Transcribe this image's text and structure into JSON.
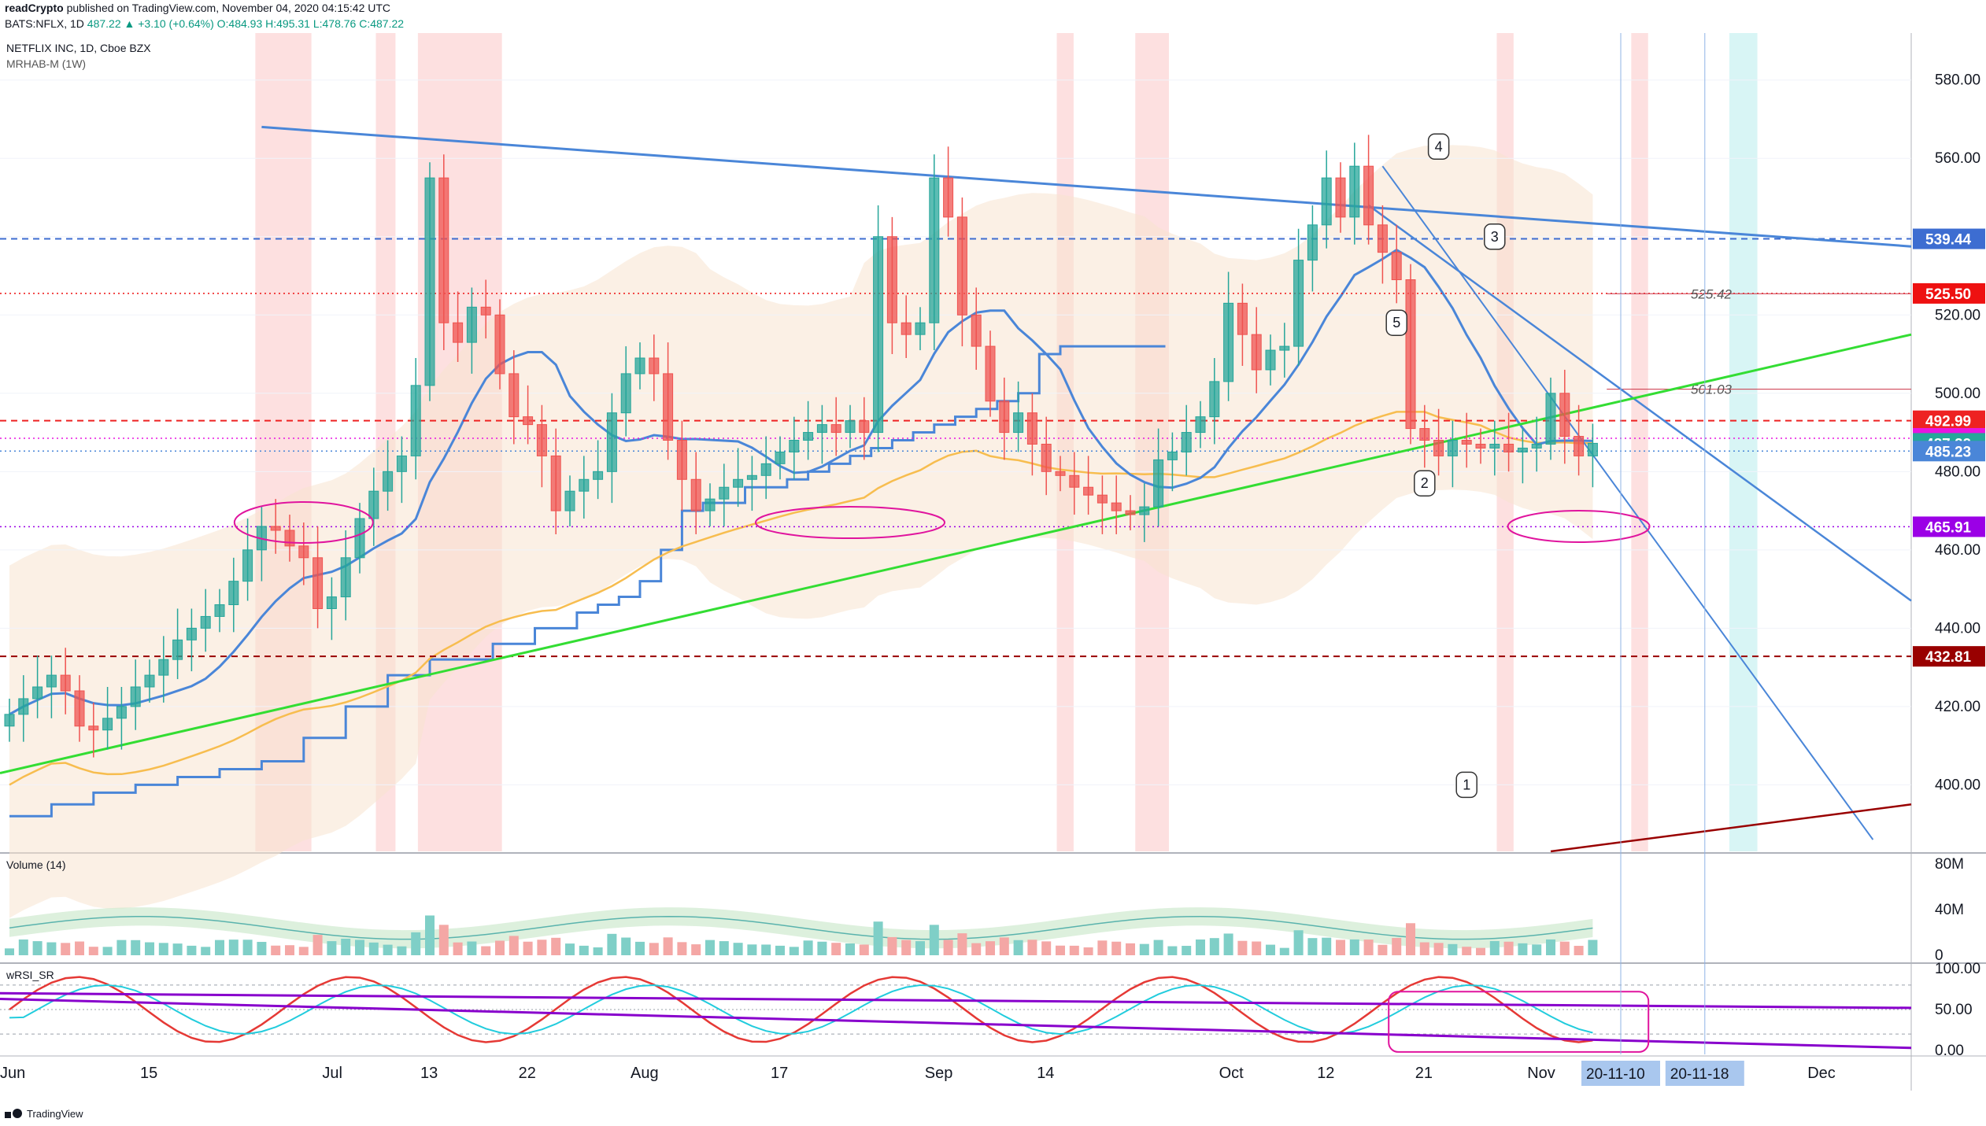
{
  "header": {
    "author": "readCrypto",
    "published_text": "published on TradingView.com, November 04, 2020 04:15:42 UTC",
    "symbol": "BATS:NFLX, 1D",
    "ohlc": "487.22 ▲ +3.10 (+0.64%) O:484.93 H:495.31 L:478.76 C:487.22"
  },
  "legend": {
    "title": "NETFLIX INC, 1D, Cboe BZX",
    "indicator": "MRHAB-M (1W)",
    "volume_label": "Volume (14)",
    "rsi_label": "wRSI_SR"
  },
  "footer": {
    "brand": "TradingView"
  },
  "colors": {
    "up": "#26a69a",
    "down": "#ef5350",
    "trend_blue": "#4a86d8",
    "trend_green": "#33dd33",
    "magenta": "#e0149e",
    "purple": "#8800cc",
    "darkred": "#990000",
    "orange": "#f7bd4f"
  },
  "chart_data": {
    "type": "candlestick",
    "x_axis": {
      "tick_labels": [
        {
          "label": "Jun",
          "idx": 0
        },
        {
          "label": "15",
          "idx": 10
        },
        {
          "label": "Jul",
          "idx": 23
        },
        {
          "label": "13",
          "idx": 30
        },
        {
          "label": "22",
          "idx": 37
        },
        {
          "label": "Aug",
          "idx": 45
        },
        {
          "label": "17",
          "idx": 55
        },
        {
          "label": "Sep",
          "idx": 66
        },
        {
          "label": "14",
          "idx": 74
        },
        {
          "label": "Oct",
          "idx": 87
        },
        {
          "label": "12",
          "idx": 94
        },
        {
          "label": "21",
          "idx": 101
        },
        {
          "label": "Nov",
          "idx": 109
        },
        {
          "label": "Dec",
          "idx": 129
        }
      ],
      "date_boxes": [
        {
          "label": "20-11-10",
          "idx": 115
        },
        {
          "label": "20-11-18",
          "idx": 121
        }
      ]
    },
    "y_axis": {
      "range": [
        383,
        592
      ],
      "tick_labels": [
        "580.00",
        "560.00",
        "540.00",
        "520.00",
        "500.00",
        "480.00",
        "460.00",
        "440.00",
        "420.00",
        "400.00"
      ],
      "tick_values": [
        580,
        560,
        540,
        520,
        500,
        480,
        460,
        440,
        420,
        400
      ]
    },
    "price_labels": [
      {
        "label": "539.44",
        "value": 539.44,
        "color": "#3d6dd1",
        "line": "dashed"
      },
      {
        "label": "525.50",
        "value": 525.5,
        "color": "#ee1111",
        "line": "dotted"
      },
      {
        "label": "492.99",
        "value": 492.99,
        "color": "#ee2222",
        "line": "dashed"
      },
      {
        "label": "488.51",
        "value": 488.51,
        "color": "#e815e0",
        "line": "dotted"
      },
      {
        "label": "487.22",
        "value": 487.22,
        "color": "#26a69a",
        "line": "none"
      },
      {
        "label": "485.23",
        "value": 485.23,
        "color": "#4a86d8",
        "line": "dotted"
      },
      {
        "label": "465.91",
        "value": 465.91,
        "color": "#9b00e6",
        "line": "dotted"
      },
      {
        "label": "432.81",
        "value": 432.81,
        "color": "#990000",
        "line": "dashed"
      }
    ],
    "line_annotations": [
      {
        "label": "525.42",
        "value": 525.42,
        "idx": 120
      },
      {
        "label": "501.03",
        "value": 501.03,
        "idx": 120
      }
    ],
    "callouts": [
      {
        "label": "1",
        "idx": 104
      },
      {
        "label": "2",
        "idx": 101
      },
      {
        "label": "3",
        "idx": 106
      },
      {
        "label": "4",
        "idx": 102
      },
      {
        "label": "5",
        "idx": 99
      }
    ],
    "closes": [
      418,
      422,
      425,
      428,
      424,
      415,
      414,
      417,
      420,
      425,
      428,
      432,
      437,
      440,
      443,
      446,
      452,
      460,
      466,
      465,
      461,
      458,
      445,
      448,
      458,
      468,
      475,
      480,
      484,
      502,
      555,
      518,
      513,
      522,
      520,
      505,
      494,
      492,
      484,
      470,
      475,
      478,
      480,
      495,
      505,
      509,
      505,
      488,
      478,
      470,
      473,
      476,
      478,
      479,
      482,
      485,
      488,
      490,
      492,
      490,
      493,
      490,
      540,
      518,
      515,
      518,
      555,
      545,
      520,
      512,
      498,
      490,
      495,
      487,
      480,
      479,
      476,
      474,
      472,
      470,
      469,
      471,
      483,
      485,
      490,
      494,
      503,
      523,
      515,
      506,
      511,
      512,
      534,
      543,
      555,
      545,
      558,
      543,
      536,
      529,
      491,
      488,
      484,
      488,
      487,
      486,
      487,
      485,
      486,
      487,
      500,
      489,
      484,
      487.22
    ],
    "volume_range": [
      0,
      80
    ],
    "volume_tick_labels": [
      "80M",
      "40M",
      "0"
    ],
    "volume_tick_values": [
      80,
      40,
      0
    ],
    "rsi_range": [
      -5,
      105
    ],
    "rsi_tick_labels": [
      "100.00",
      "50.00",
      "0.00"
    ],
    "rsi_tick_values": [
      100,
      50,
      0
    ]
  }
}
